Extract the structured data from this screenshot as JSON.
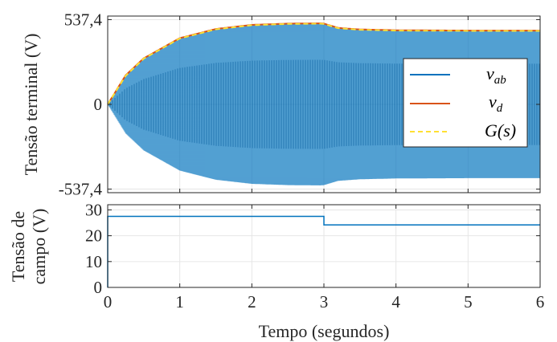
{
  "chart_data": [
    {
      "type": "line",
      "ylabel": "Tensão terminal (V)",
      "ylim": [
        -560,
        560
      ],
      "xlim": [
        0,
        6
      ],
      "yticks": [
        "-537,4",
        "0",
        "537,4"
      ],
      "ytick_values": [
        -537.4,
        0,
        537.4
      ],
      "grid": true,
      "legend_position": "center-right",
      "series": [
        {
          "name": "v",
          "sub": "ab",
          "color": "#0072BD",
          "description_type": "sinusoid",
          "envelope_x": [
            0,
            0.25,
            0.5,
            1.0,
            1.5,
            2.0,
            2.5,
            2.95,
            3.0,
            3.2,
            3.5,
            4.0,
            5.0,
            6.0
          ],
          "envelope_y": [
            0,
            185,
            292,
            420,
            478,
            504,
            512,
            514,
            512,
            485,
            475,
            470,
            468,
            468
          ]
        },
        {
          "name": "v",
          "sub": "d",
          "color": "#D95319",
          "x": [
            0,
            0.25,
            0.5,
            1.0,
            1.5,
            2.0,
            2.5,
            2.95,
            3.0,
            3.2,
            3.5,
            4.0,
            5.0,
            6.0
          ],
          "y": [
            0,
            185,
            292,
            420,
            478,
            504,
            512,
            514,
            512,
            485,
            475,
            470,
            468,
            468
          ]
        },
        {
          "name": "G(s)",
          "sub": "",
          "color": "#FFE033",
          "dashed": true,
          "x": [
            0,
            0.25,
            0.5,
            1.0,
            1.5,
            2.0,
            2.5,
            2.95,
            3.0,
            3.2,
            3.5,
            4.0,
            5.0,
            6.0
          ],
          "y": [
            0,
            182,
            290,
            418,
            476,
            502,
            510,
            512,
            510,
            483,
            473,
            468,
            466,
            466
          ]
        }
      ]
    },
    {
      "type": "line",
      "ylabel_lines": [
        "Tensão de",
        "campo (V)"
      ],
      "xlabel": "Tempo (segundos)",
      "xlim": [
        0,
        6
      ],
      "ylim": [
        0,
        32
      ],
      "xticks": [
        0,
        1,
        2,
        3,
        4,
        5,
        6
      ],
      "yticks": [
        0,
        10,
        20,
        30
      ],
      "grid": true,
      "series": [
        {
          "color": "#0072BD",
          "x": [
            0,
            0,
            3,
            3,
            6
          ],
          "y": [
            0,
            27.5,
            27.5,
            24.2,
            24.2
          ]
        }
      ]
    }
  ]
}
